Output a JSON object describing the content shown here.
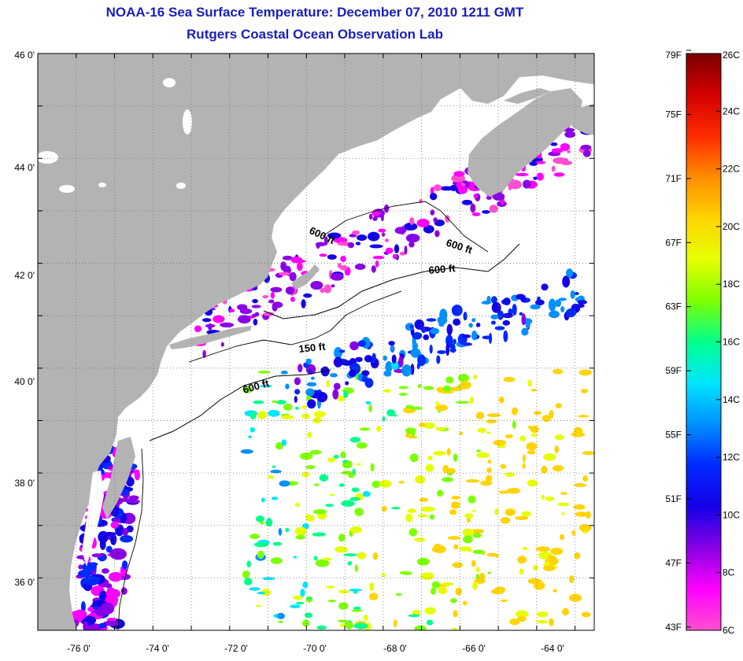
{
  "title": {
    "line1": "NOAA-16 Sea Surface Temperature:  December 07, 2010 1211 GMT",
    "line2": "Rutgers Coastal Ocean Observation Lab"
  },
  "map": {
    "lat_labels": [
      "46 0'",
      "44 0'",
      "42 0'",
      "40 0'",
      "38 0'",
      "36 0'"
    ],
    "lon_labels": [
      "-76 0'",
      "-74 0'",
      "-72 0'",
      "-70 0'",
      "-68 0'",
      "-66 0'",
      "-64 0'"
    ],
    "lat_range": [
      35,
      46
    ],
    "lon_range": [
      -77,
      -62.5
    ],
    "land_color": "#b3b3b3",
    "cloud_color": "#ffffff",
    "contour_labels": [
      "600 ft",
      "600 ft",
      "600 ft",
      "150 ft",
      "600 ft"
    ]
  },
  "colorbar": {
    "fahrenheit_labels": [
      "79F",
      "75F",
      "71F",
      "67F",
      "63F",
      "59F",
      "55F",
      "51F",
      "47F",
      "43F"
    ],
    "celsius_labels": [
      "26C",
      "24C",
      "22C",
      "20C",
      "18C",
      "16C",
      "14C",
      "12C",
      "10C",
      "8C",
      "6C"
    ],
    "range_c": [
      6,
      26
    ],
    "gradient_colors_top_to_bottom": [
      "#7a0000",
      "#d40000",
      "#ff2a00",
      "#ff8c00",
      "#ffd400",
      "#e6ff00",
      "#7dff00",
      "#00ff8c",
      "#00e6ff",
      "#0090ff",
      "#0028ff",
      "#1400e6",
      "#8a00e6",
      "#ff00ff",
      "#ff4fd0"
    ]
  }
}
